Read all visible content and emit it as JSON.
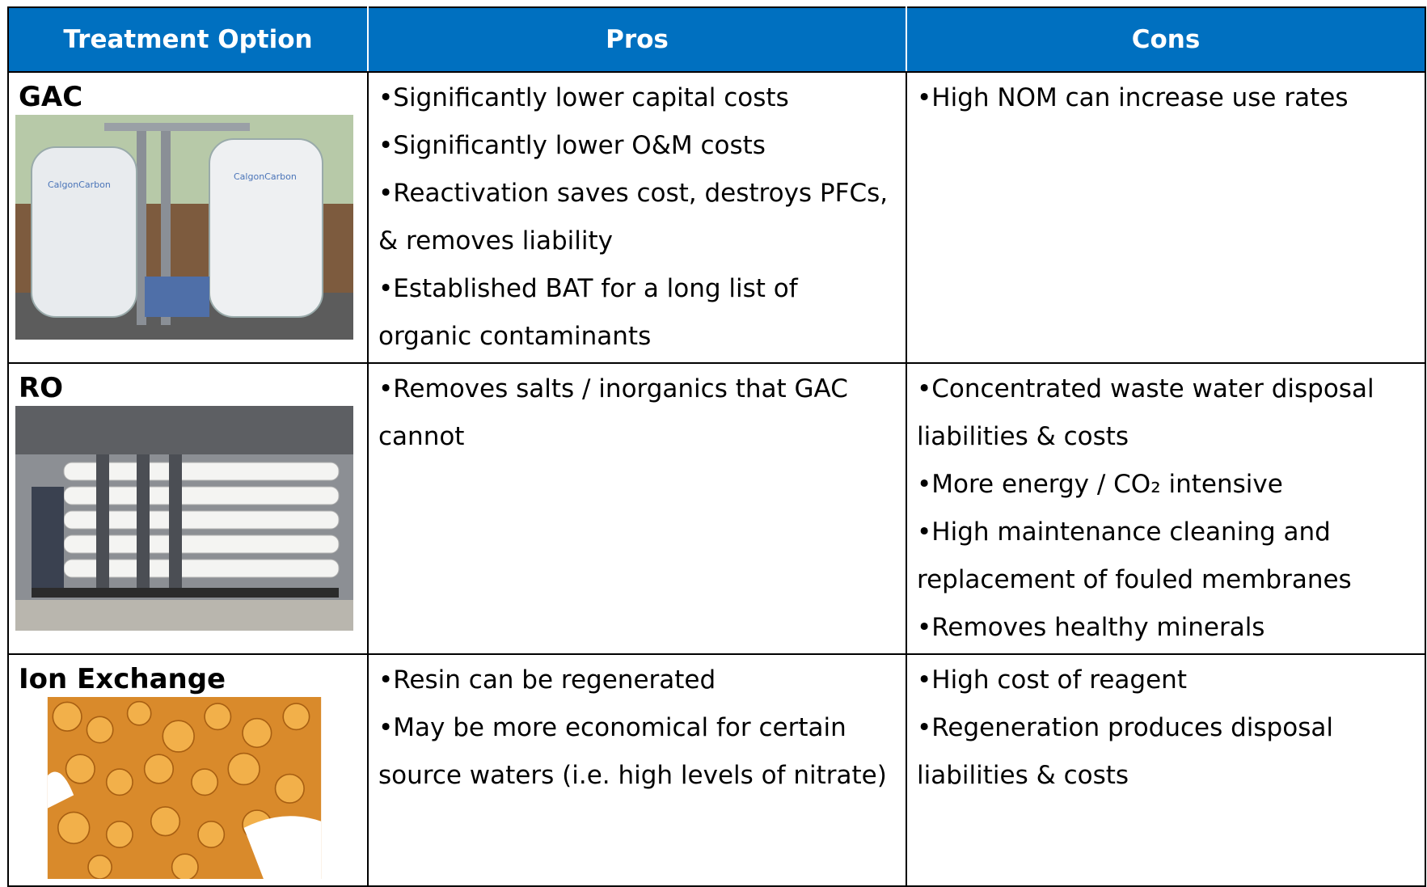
{
  "table": {
    "header": [
      "Treatment Option",
      "Pros",
      "Cons"
    ],
    "rows": [
      {
        "option": "GAC",
        "pros": [
          "•Significantly lower capital costs",
          "•Significantly lower O&M costs",
          "•Reactivation saves cost, destroys PFCs, & removes liability",
          "•Established BAT for a long list of organic contaminants"
        ],
        "cons": [
          "•High NOM can increase use rates"
        ]
      },
      {
        "option": "RO",
        "pros": [
          "•Removes salts / inorganics that GAC cannot"
        ],
        "cons": [
          "•Concentrated waste water disposal liabilities & costs",
          "•More energy / CO₂ intensive",
          "•High maintenance cleaning and replacement of fouled membranes",
          "•Removes healthy minerals"
        ]
      },
      {
        "option": "Ion Exchange",
        "pros": [
          "•Resin can be regenerated",
          "•May be more economical for certain source waters (i.e. high levels of nitrate)"
        ],
        "cons": [
          "•High cost of reagent",
          "•Regeneration produces disposal liabilities & costs"
        ]
      }
    ]
  }
}
